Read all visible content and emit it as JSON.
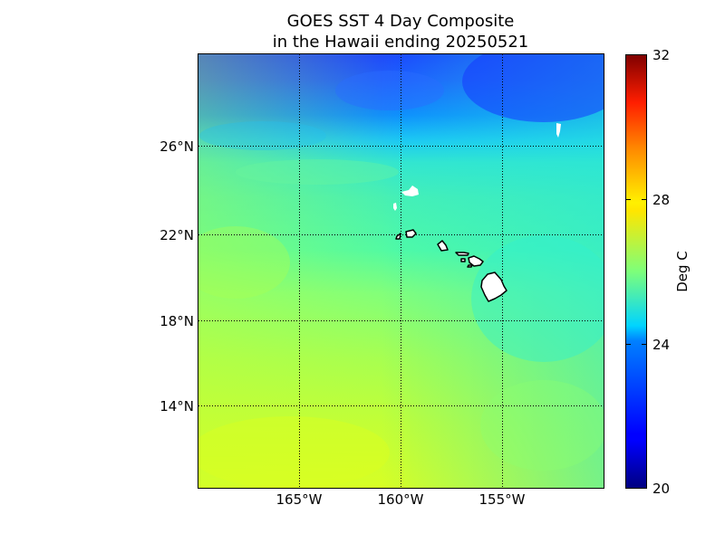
{
  "title_line1": "GOES SST 4 Day Composite",
  "title_line2": "in the Hawaii ending 20250521",
  "colorbar": {
    "label": "Deg C",
    "min": 20,
    "max": 32,
    "ticks": [
      "20",
      "24",
      "28",
      "32"
    ],
    "colormap": "jet"
  },
  "axes": {
    "lon_labels": [
      "165°W",
      "160°W",
      "155°W"
    ],
    "lat_labels": [
      "26°N",
      "22°N",
      "18°N",
      "14°N"
    ]
  },
  "chart_data": {
    "type": "heatmap",
    "title": "GOES SST 4 Day Composite in the Hawaii ending 20250521",
    "xlabel": "",
    "ylabel": "",
    "color_label": "Deg C",
    "xlim": [
      -170,
      -150
    ],
    "ylim": [
      10.2,
      30
    ],
    "grid": true,
    "value_range": [
      20,
      32
    ],
    "xticks": [
      -165,
      -160,
      -155
    ],
    "yticks": [
      26,
      22,
      18,
      14
    ],
    "sst_by_latitude": [
      {
        "lat": 29.5,
        "sst": 22.5
      },
      {
        "lat": 28,
        "sst": 23.3
      },
      {
        "lat": 26.5,
        "sst": 24.3
      },
      {
        "lat": 25,
        "sst": 25.2
      },
      {
        "lat": 22,
        "sst": 25.7
      },
      {
        "lat": 18,
        "sst": 26.3
      },
      {
        "lat": 14,
        "sst": 26.8
      },
      {
        "lat": 11,
        "sst": 27.2
      }
    ],
    "islands": [
      {
        "name": "Hawaii"
      },
      {
        "name": "Maui"
      },
      {
        "name": "Molokai"
      },
      {
        "name": "Oahu"
      },
      {
        "name": "Kauai"
      },
      {
        "name": "Niihau"
      }
    ]
  }
}
